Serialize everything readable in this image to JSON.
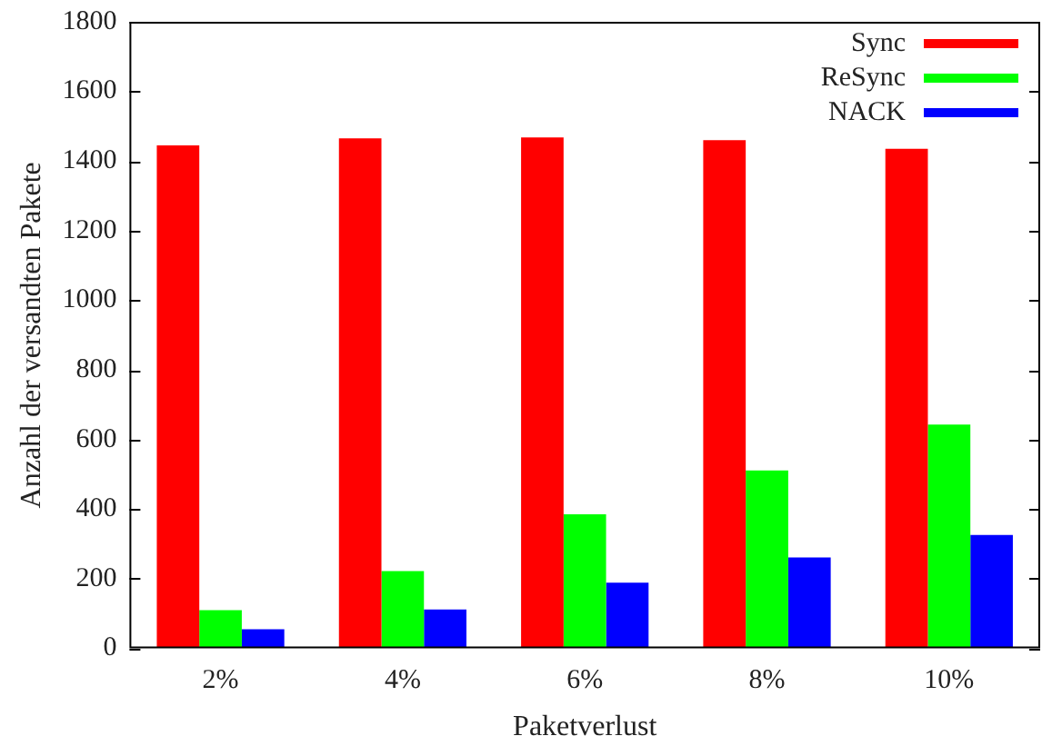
{
  "chart_data": {
    "type": "bar",
    "xlabel": "Paketverlust",
    "ylabel": "Anzahl der versandten Pakete",
    "categories": [
      "2%",
      "4%",
      "6%",
      "8%",
      "10%"
    ],
    "series": [
      {
        "name": "Sync",
        "color": "#ff0000",
        "values": [
          1445,
          1465,
          1468,
          1460,
          1435
        ]
      },
      {
        "name": "ReSync",
        "color": "#00ff00",
        "values": [
          110,
          222,
          385,
          511,
          643
        ]
      },
      {
        "name": "NACK",
        "color": "#0000ff",
        "values": [
          55,
          112,
          189,
          261,
          326
        ]
      }
    ],
    "ylim": [
      0,
      1800
    ],
    "yticks": [
      0,
      200,
      400,
      600,
      800,
      1000,
      1200,
      1400,
      1600,
      1800
    ],
    "grid": false,
    "legend": "top right"
  }
}
